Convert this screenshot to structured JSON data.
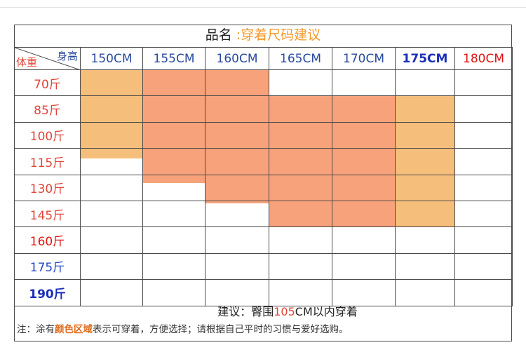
{
  "title": {
    "prefix": "品名",
    "colon": " :",
    "name": "穿着尺码建议"
  },
  "corner": {
    "height_label": "身高",
    "weight_label": "体重"
  },
  "heights": [
    "150CM",
    "155CM",
    "160CM",
    "165CM",
    "170CM",
    "175CM",
    "180CM"
  ],
  "weights": [
    "70斤",
    "85斤",
    "100斤",
    "115斤",
    "130斤",
    "145斤",
    "160斤",
    "175斤",
    "190斤"
  ],
  "fill_colors": {
    "light": "#f6be7b",
    "dark": "#f7a27a"
  },
  "suggestion": {
    "prefix": "建议：臀围",
    "number": "105",
    "suffix": "CM以内穿着"
  },
  "note": {
    "prefix": "注：涂有",
    "highlight": "颜色区域",
    "suffix": "表示可穿着，方便选择；请根据自己平时的习惯与爱好选购。"
  }
}
